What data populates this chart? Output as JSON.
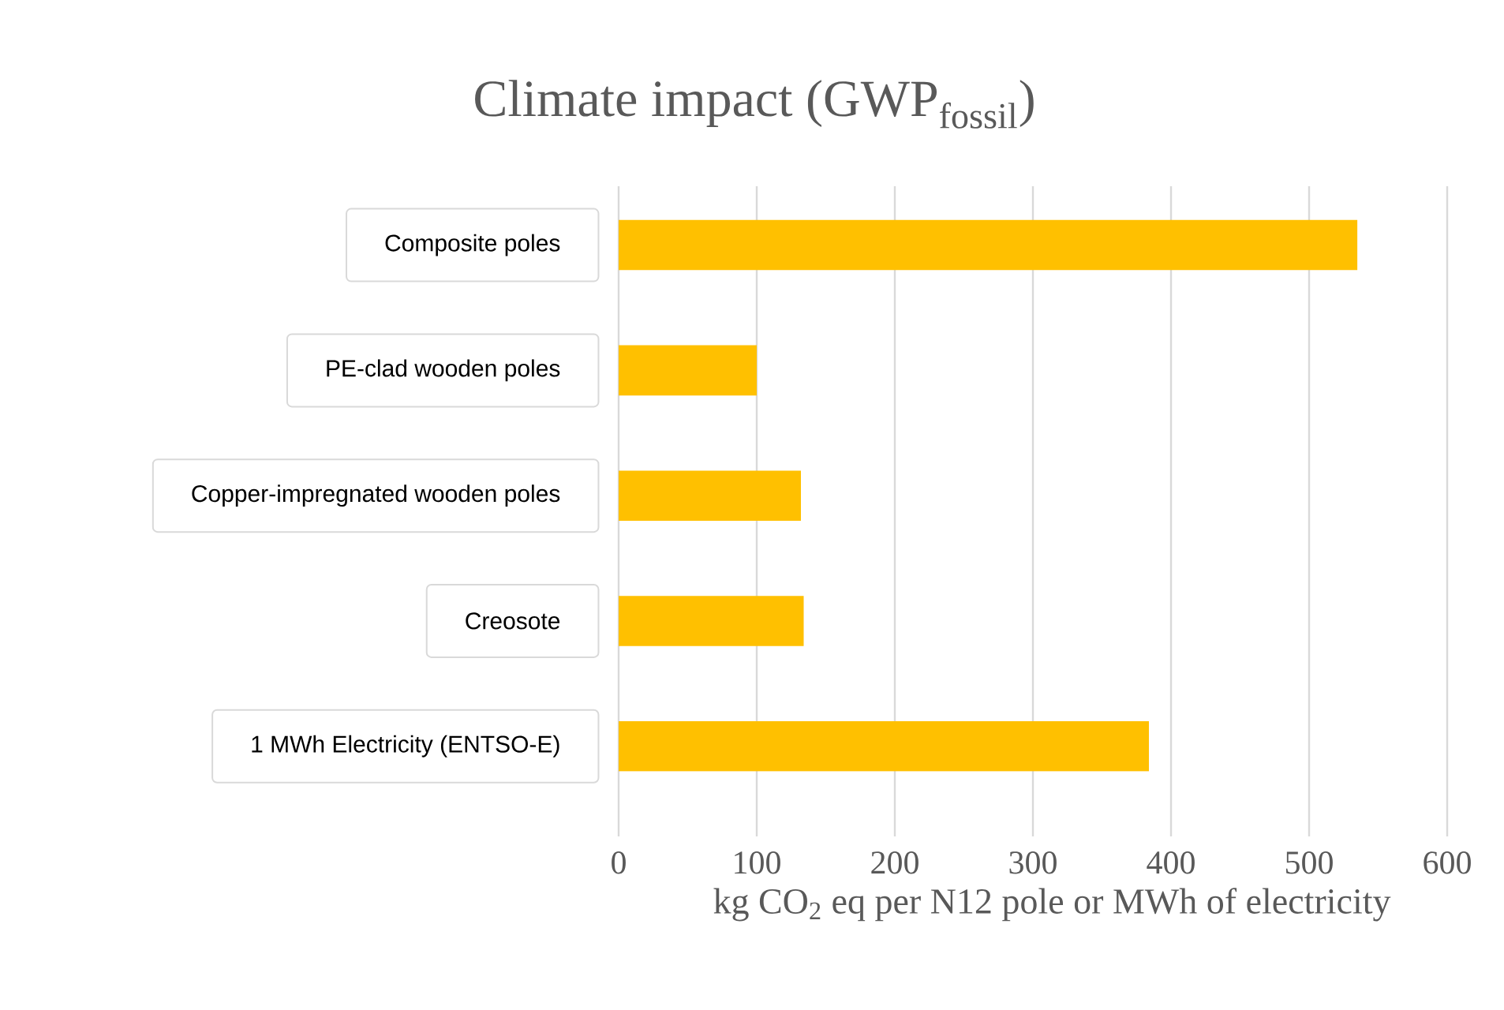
{
  "chart_data": {
    "type": "bar",
    "orientation": "horizontal",
    "title": "Climate impact (GWP$_{fossil}$)",
    "categories": [
      "Composite poles",
      "PE-clad wooden poles",
      "Copper-impregnated wooden poles",
      "Creosote",
      "1 MWh Electricity (ENTSO-E)"
    ],
    "values": [
      535,
      100,
      132,
      134,
      384
    ],
    "color": "#ffc000",
    "xlim": [
      0,
      600
    ],
    "xticks": [
      0,
      100,
      200,
      300,
      400,
      500,
      600
    ],
    "grid": "x",
    "xlabel": "kg CO$_{2}$ eq per N12 pole or MWh of electricity"
  }
}
